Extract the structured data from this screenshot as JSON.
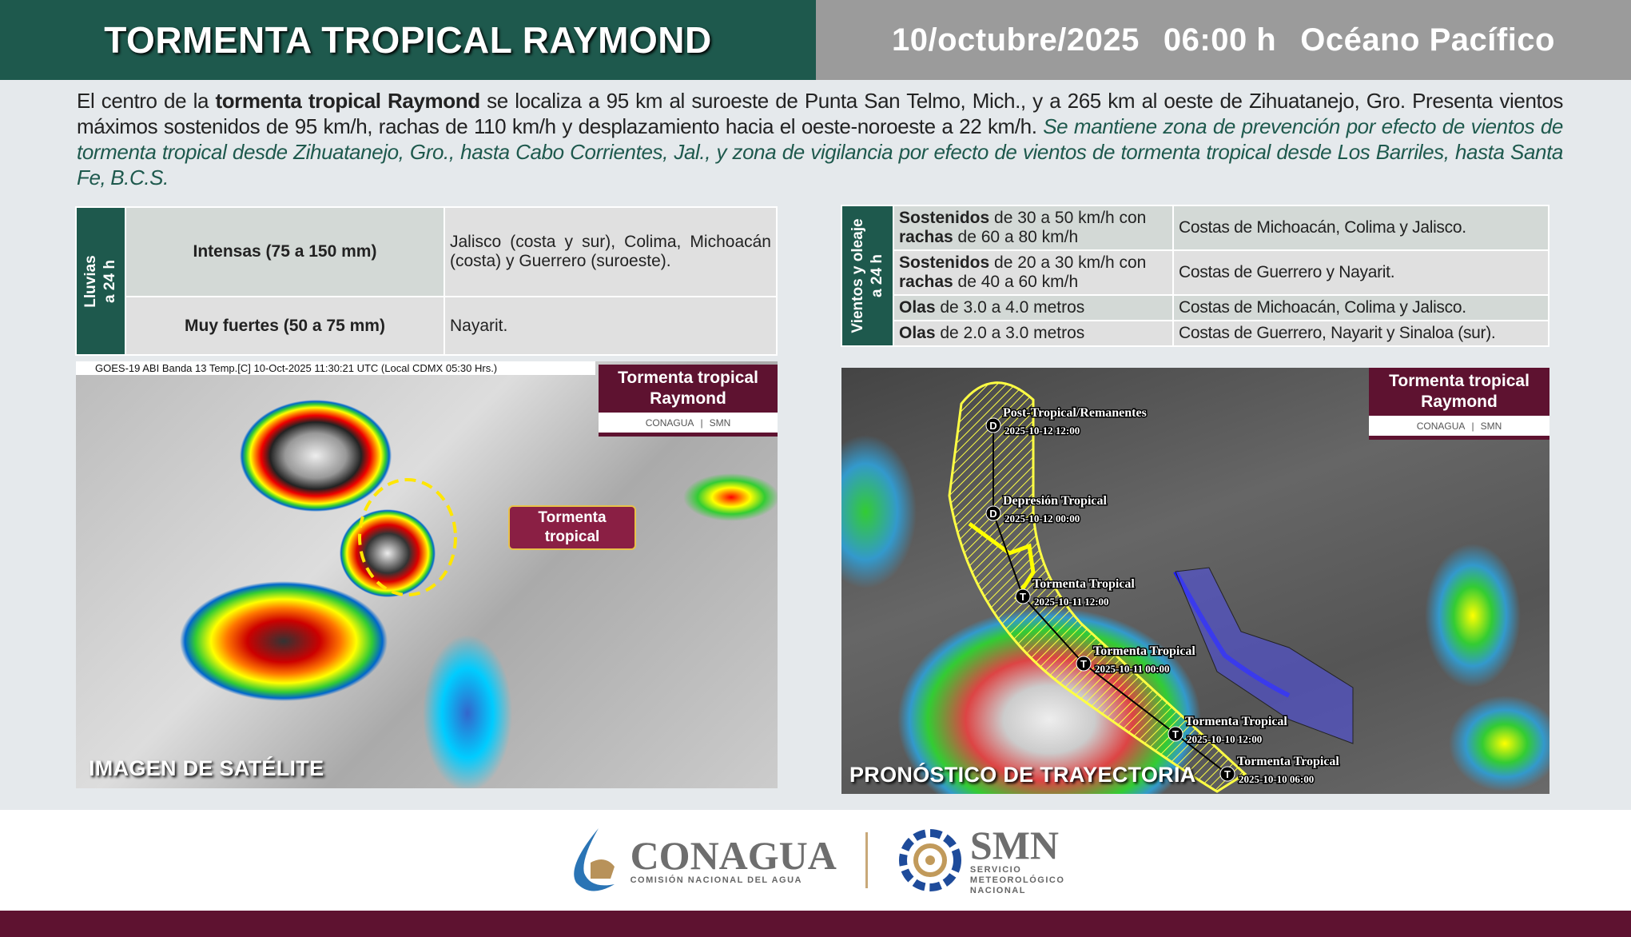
{
  "header": {
    "title": "TORMENTA TROPICAL RAYMOND",
    "date": "10/octubre/2025",
    "time": "06:00 h",
    "region": "Océano Pacífico"
  },
  "summary": {
    "p1": "El centro de la ",
    "bold": "tormenta tropical Raymond",
    "p2": " se localiza a 95 km al suroeste de Punta San Telmo, Mich., y a 265 km al oeste de Zihuatanejo, Gro. Presenta vientos máximos sostenidos de 95 km/h, rachas de 110 km/h y desplazamiento hacia el oeste-noroeste a 22 km/h. ",
    "italic": "Se mantiene zona de prevención por efecto de vientos de tormenta tropical desde Zihuatanejo, Gro., hasta Cabo Corrientes, Jal., y zona de vigilancia por efecto de vientos de tormenta tropical desde Los Barriles, hasta Santa Fe, B.C.S."
  },
  "rain": {
    "side": [
      "Lluvias",
      "a 24 h"
    ],
    "rows": [
      {
        "level": "Intensas (75 a 150 mm)",
        "areas": "Jalisco (costa y sur), Colima, Michoacán (costa) y Guerrero (suroeste)."
      },
      {
        "level": "Muy fuertes (50 a 75 mm)",
        "areas": "Nayarit."
      }
    ]
  },
  "wind": {
    "side": [
      "Vientos y oleaje",
      "a 24 h"
    ],
    "rows": [
      {
        "b1": "Sostenidos",
        "t1": " de 30 a 50 km/h con ",
        "b2": "rachas",
        "t2": " de 60 a 80 km/h",
        "areas": "Costas de Michoacán, Colima y Jalisco."
      },
      {
        "b1": "Sostenidos",
        "t1": " de 20 a 30 km/h con ",
        "b2": "rachas",
        "t2": " de 40 a 60 km/h",
        "areas": "Costas de Guerrero y Nayarit."
      },
      {
        "b1": "Olas",
        "t1": " de 3.0 a 4.0 metros",
        "b2": "",
        "t2": "",
        "areas": "Costas de Michoacán, Colima y Jalisco."
      },
      {
        "b1": "Olas",
        "t1": " de 2.0 a 3.0 metros",
        "b2": "",
        "t2": "",
        "areas": "Costas de Guerrero, Nayarit y Sinaloa (sur)."
      }
    ]
  },
  "satellite": {
    "caption": "GOES-19 ABI Banda 13 Temp.[C] 10-Oct-2025 11:30:21 UTC (Local CDMX  05:30 Hrs.)",
    "label": "IMAGEN DE SATÉLITE",
    "storm_label": "Tormenta tropical",
    "badge": "Tormenta tropical Raymond",
    "badge_logos": [
      "CONAGUA",
      "SMN"
    ]
  },
  "forecast": {
    "label": "PRONÓSTICO DE TRAYECTORIA",
    "badge": "Tormenta tropical Raymond",
    "badge_logos": [
      "CONAGUA",
      "SMN"
    ],
    "points": [
      {
        "symbol": "T",
        "name": "Tormenta Tropical",
        "time": "2025-10-10 06:00"
      },
      {
        "symbol": "T",
        "name": "Tormenta Tropical",
        "time": "2025-10-10 12:00"
      },
      {
        "symbol": "T",
        "name": "Tormenta Tropical",
        "time": "2025-10-11 00:00"
      },
      {
        "symbol": "T",
        "name": "Tormenta Tropical",
        "time": "2025-10-11 12:00"
      },
      {
        "symbol": "D",
        "name": "Depresión Tropical",
        "time": "2025-10-12 00:00"
      },
      {
        "symbol": "D",
        "name": "Post-Tropical/Remanentes",
        "time": "2025-10-12 12:00"
      }
    ],
    "colors": {
      "cone": "#ffff44",
      "warning": "#1a1aff",
      "watch": "#ffff00"
    }
  },
  "footer": {
    "conagua": "CONAGUA",
    "conagua_sub": "COMISIÓN NACIONAL DEL AGUA",
    "smn": "SMN",
    "smn_sub": [
      "SERVICIO",
      "METEOROLÓGICO",
      "NACIONAL"
    ]
  },
  "colors": {
    "green": "#1e594d",
    "maroon": "#5e1230",
    "grey": "#9b9b9b"
  }
}
